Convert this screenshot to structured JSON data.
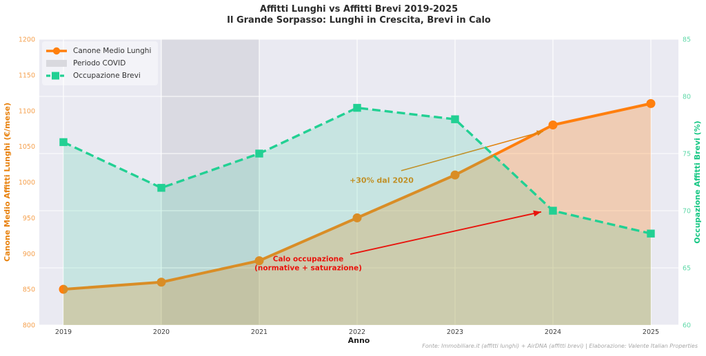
{
  "title": "Affitti Lunghi vs Affitti Brevi 2019-2025",
  "subtitle": "Il Grande Sorpasso: Lunghi in Crescita, Brevi in Calo",
  "footer": "Fonte: Immobiliare.it (affitti lunghi) + AirDNA (affitti brevi) | Elaborazione: Valente Italian Properties",
  "legend": {
    "position": "upper-left",
    "items": [
      {
        "label": "Canone Medio Lunghi",
        "swatch": "orange-line-circle"
      },
      {
        "label": "Periodo COVID",
        "swatch": "gray-patch"
      },
      {
        "label": "Occupazione Brevi",
        "swatch": "teal-dash-square"
      }
    ]
  },
  "chart_data": {
    "type": "line",
    "x": [
      2019,
      2020,
      2021,
      2022,
      2023,
      2024,
      2025
    ],
    "xlabel": "Anno",
    "grid": true,
    "plot_bg": "#eaeaf2",
    "grid_color": "#ffffff",
    "series": [
      {
        "name": "Canone Medio Lunghi",
        "axis": "left",
        "values": [
          850,
          860,
          890,
          950,
          1010,
          1080,
          1110
        ],
        "color": "#ff7f0e",
        "fill_color": "rgba(255,127,14,0.27)",
        "marker": "circle",
        "line_style": "solid",
        "fill": true
      },
      {
        "name": "Occupazione Brevi",
        "axis": "right",
        "values": [
          76,
          72,
          75,
          79,
          78,
          70,
          68
        ],
        "color": "#22d093",
        "fill_color": "rgba(46,204,150,0.18)",
        "marker": "square",
        "line_style": "dashed",
        "fill": true
      }
    ],
    "left_axis": {
      "label": "Canone Medio Affitti Lunghi (€/mese)",
      "range": [
        800,
        1200
      ],
      "ticks": [
        800,
        850,
        900,
        950,
        1000,
        1050,
        1100,
        1150,
        1200
      ],
      "label_color": "#e8820e",
      "tick_color": "#f5a04d"
    },
    "right_axis": {
      "label": "Occupazione Affitti Brevi (%)",
      "range": [
        60,
        85
      ],
      "ticks": [
        60,
        65,
        70,
        75,
        80,
        85
      ],
      "label_color": "#17c784",
      "tick_color": "#5fd9a8"
    },
    "x_axis": {
      "tick_color": "#3d3d3d"
    },
    "covid_band": {
      "label": "Periodo COVID",
      "from": 2020,
      "to": 2021,
      "color": "rgba(125,125,135,0.15)"
    },
    "annotations": [
      {
        "id": "crescita-lunghi",
        "text": "+30% dal 2020",
        "color": "#e1830f",
        "axis": "left",
        "text_at": {
          "year": 2022.25,
          "value": 1003
        },
        "arrow_from": {
          "year": 2022.45,
          "value": 1016
        },
        "arrow_to": {
          "year": 2023.9,
          "value": 1071
        }
      },
      {
        "id": "calo-occupazione",
        "text": "Calo occupazione",
        "text2": "(normative + saturazione)",
        "color": "#e8130c",
        "axis": "right",
        "text_at": {
          "year": 2021.5,
          "value": 65.45
        },
        "arrow_from": {
          "year": 2021.93,
          "value": 66.2
        },
        "arrow_to": {
          "year": 2023.88,
          "value": 69.9
        }
      }
    ]
  }
}
